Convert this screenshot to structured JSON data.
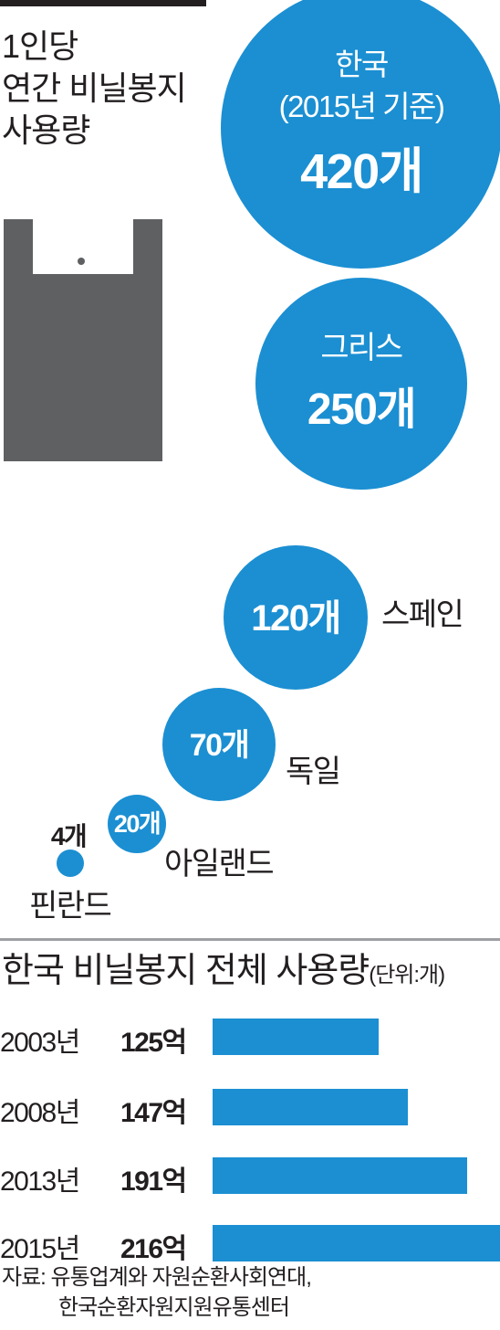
{
  "colors": {
    "bubble": "#1b8fd2",
    "bar": "#1b8fd2",
    "bag": "#5f6062",
    "text": "#231f20",
    "divider": "#9d9fa2"
  },
  "title": {
    "line1": "1인당",
    "line2": "연간 비닐봉지",
    "line3": "사용량"
  },
  "chart_data": [
    {
      "type": "bubble",
      "series": [
        {
          "name": "한국",
          "note": "(2015년 기준)",
          "value": 420,
          "label": "420개"
        },
        {
          "name": "그리스",
          "value": 250,
          "label": "250개"
        },
        {
          "name": "스페인",
          "value": 120,
          "label": "120개"
        },
        {
          "name": "독일",
          "value": 70,
          "label": "70개"
        },
        {
          "name": "아일랜드",
          "value": 20,
          "label": "20개"
        },
        {
          "name": "핀란드",
          "value": 4,
          "label": "4개"
        }
      ]
    },
    {
      "type": "bar",
      "orientation": "horizontal",
      "title": "한국 비닐봉지 전체 사용량",
      "unit": "(단위:개)",
      "categories": [
        "2003년",
        "2008년",
        "2013년",
        "2015년"
      ],
      "values": [
        125,
        147,
        191,
        216
      ],
      "value_labels": [
        "125억",
        "147억",
        "191억",
        "216억"
      ],
      "xlim": [
        0,
        216
      ]
    }
  ],
  "source": {
    "line1": "자료: 유통업계와 자원순환사회연대,",
    "line2": "한국순환자원지원유통센터"
  }
}
